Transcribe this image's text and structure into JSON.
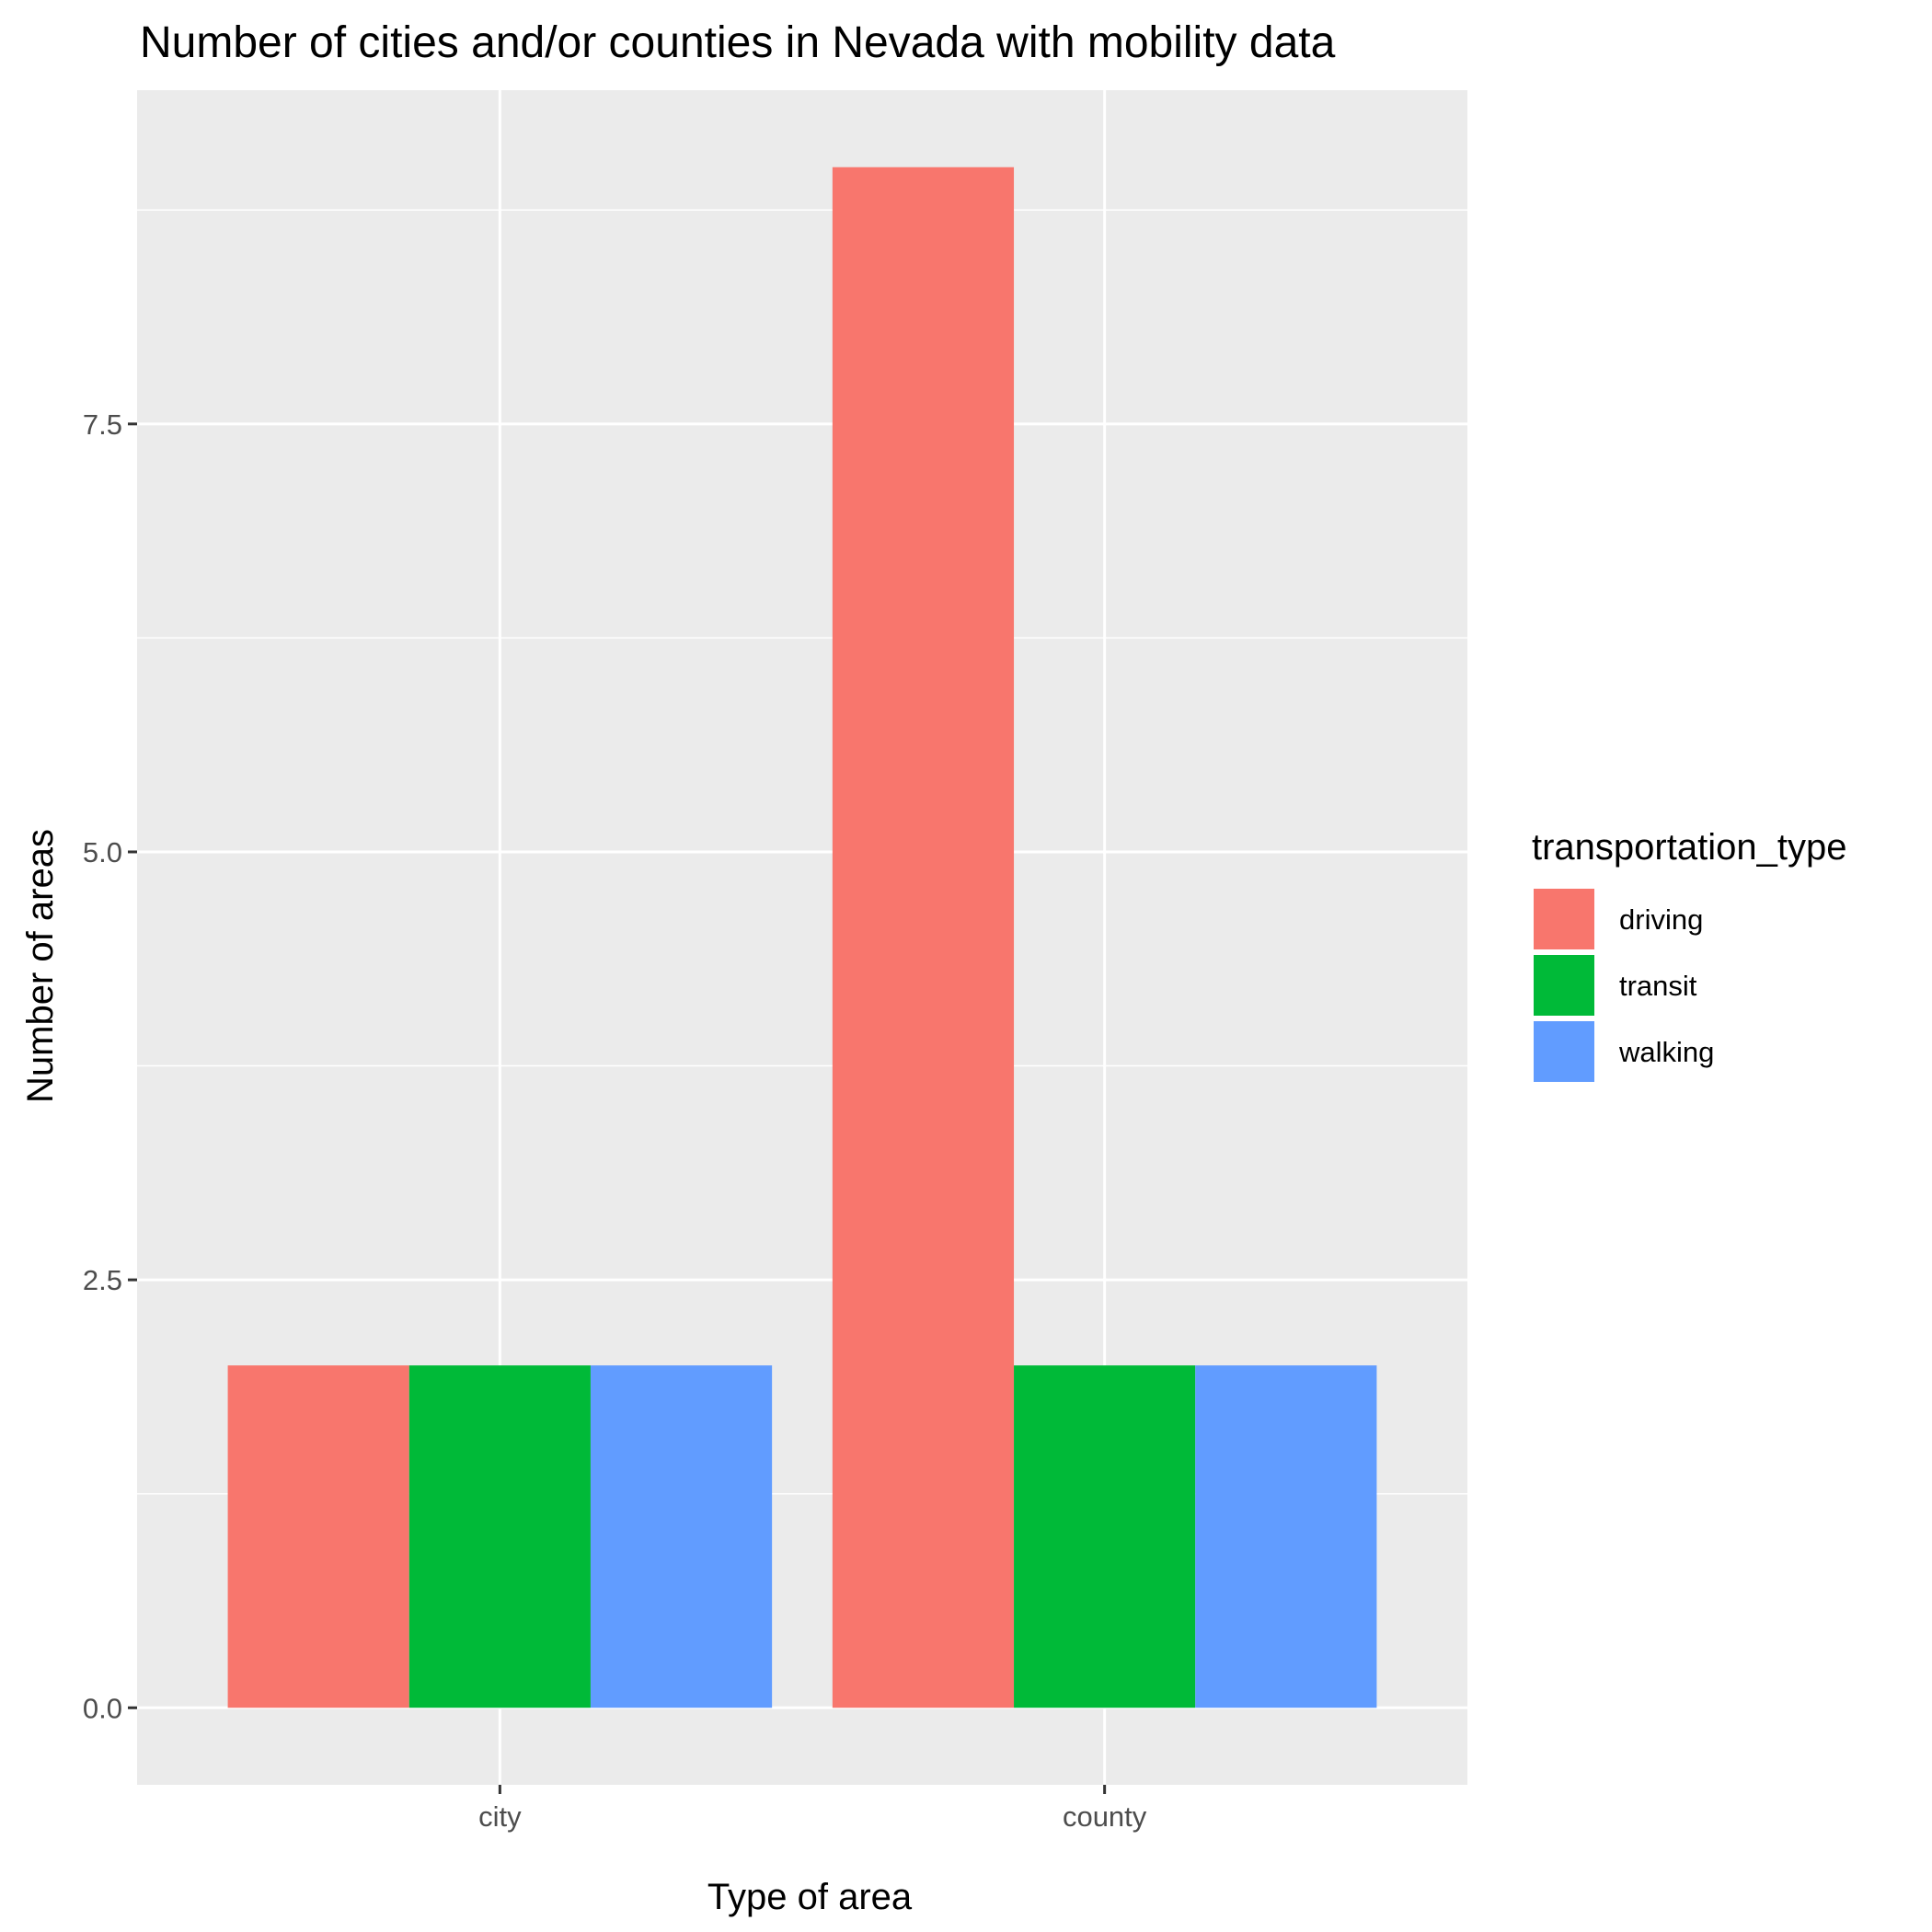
{
  "chart_data": {
    "type": "bar",
    "title": "Number of cities and/or counties in Nevada with mobility data",
    "xlabel": "Type of area",
    "ylabel": "Number of areas",
    "categories": [
      "city",
      "county"
    ],
    "series": [
      {
        "name": "driving",
        "values": [
          2,
          9
        ],
        "color": "#F8766D"
      },
      {
        "name": "transit",
        "values": [
          2,
          2
        ],
        "color": "#00BA38"
      },
      {
        "name": "walking",
        "values": [
          2,
          2
        ],
        "color": "#619CFF"
      }
    ],
    "ylim": [
      -0.45,
      9.45
    ],
    "yticks": [
      0,
      2.5,
      5,
      7.5
    ],
    "ytick_labels": [
      "0.0",
      "2.5",
      "5.0",
      "7.5"
    ],
    "grid": true,
    "panel_background": "#EBEBEB",
    "legend": {
      "title": "transportation_type",
      "position": "right"
    }
  }
}
